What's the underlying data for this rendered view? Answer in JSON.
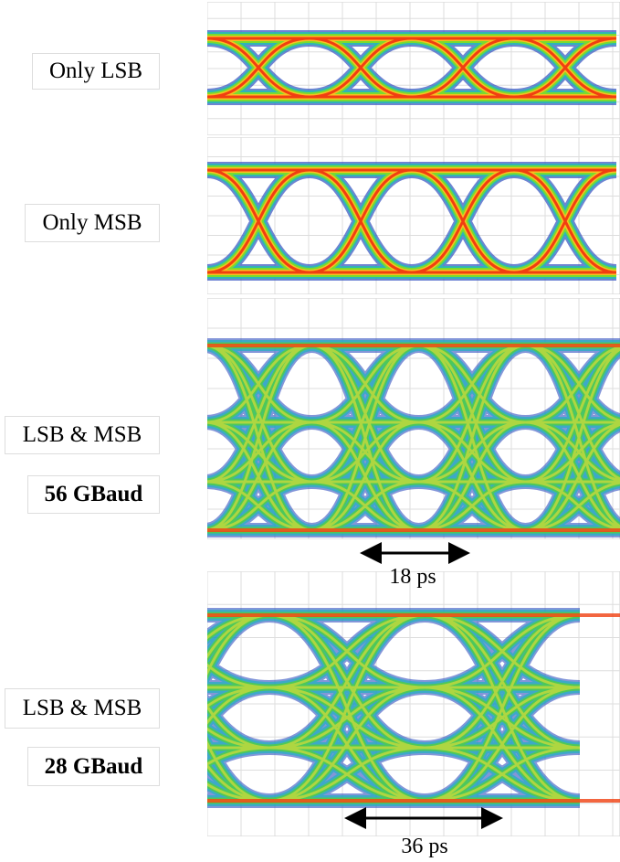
{
  "panels": [
    {
      "labels": [
        "Only LSB"
      ]
    },
    {
      "labels": [
        "Only MSB"
      ]
    },
    {
      "labels": [
        "LSB & MSB",
        "56 GBaud"
      ],
      "period": "18 ps"
    },
    {
      "labels": [
        "LSB & MSB",
        "28 GBaud"
      ],
      "period": "36 ps"
    }
  ]
}
